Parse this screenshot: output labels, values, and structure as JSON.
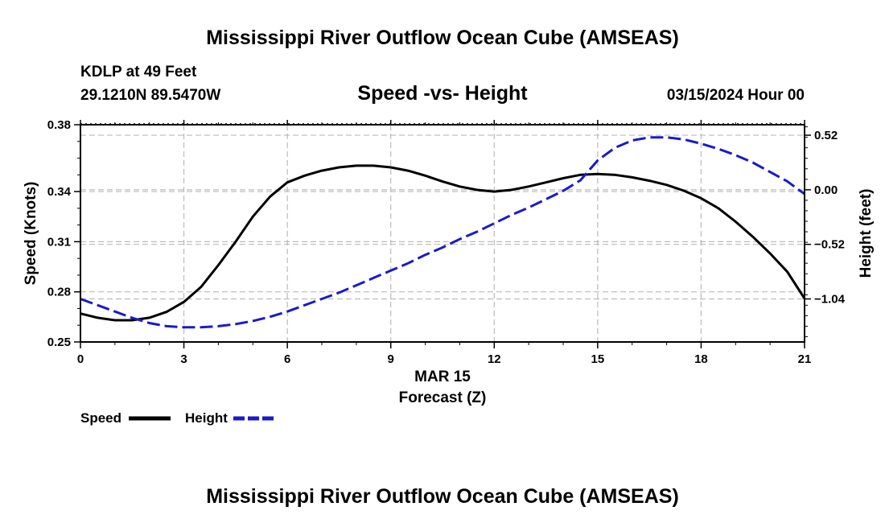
{
  "header": {
    "title": "Mississippi River Outflow Ocean Cube (AMSEAS)",
    "station": "KDLP at 49 Feet",
    "coords": "29.1210N  89.5470W",
    "date_hour": "03/15/2024 Hour 00",
    "footer_title": "Mississippi River Outflow Ocean Cube (AMSEAS)"
  },
  "colors": {
    "speed": "#000000",
    "height": "#1a1acc",
    "grid": "#bbbbbb"
  },
  "chart_data": {
    "type": "line",
    "title": "Speed -vs- Height",
    "xlabel": "Forecast (Z)",
    "xsublabel": "MAR 15",
    "ylabel": "Speed (Knots)",
    "y2label": "Height (feet)",
    "xlim": [
      0,
      21
    ],
    "ylim": [
      0.25,
      0.38
    ],
    "y2lim": [
      -1.45,
      0.62
    ],
    "grid": true,
    "legend_position": "bottom-left",
    "x_ticks": [
      0,
      3,
      6,
      9,
      12,
      15,
      18,
      21
    ],
    "x_tick_labels": [
      "0",
      "3",
      "6",
      "9",
      "12",
      "15",
      "18",
      "21"
    ],
    "y_ticks": [
      0.25,
      0.28,
      0.31,
      0.34,
      0.38
    ],
    "y_tick_labels": [
      "0.25",
      "0.28",
      "0.31",
      "0.34",
      "0.38"
    ],
    "y2_ticks": [
      -1.04,
      -0.52,
      0.0,
      0.52
    ],
    "y2_tick_labels": [
      "−1.04",
      "−0.52",
      "0.00",
      "0.52"
    ],
    "series": [
      {
        "name": "Speed",
        "axis": "left",
        "style": "solid",
        "x": [
          0,
          0.5,
          1,
          1.5,
          2,
          2.5,
          3,
          3.5,
          4,
          4.5,
          5,
          5.5,
          6,
          6.5,
          7,
          7.5,
          8,
          8.5,
          9,
          9.5,
          10,
          10.5,
          11,
          11.5,
          12,
          12.5,
          13,
          13.5,
          14,
          14.5,
          15,
          15.5,
          16,
          16.5,
          17,
          17.5,
          18,
          18.5,
          19,
          19.5,
          20,
          20.5,
          21
        ],
        "values": [
          0.267,
          0.2645,
          0.263,
          0.263,
          0.2645,
          0.268,
          0.274,
          0.283,
          0.296,
          0.31,
          0.325,
          0.337,
          0.3455,
          0.3495,
          0.3525,
          0.3545,
          0.3555,
          0.3555,
          0.3545,
          0.3525,
          0.3495,
          0.346,
          0.343,
          0.341,
          0.34,
          0.341,
          0.343,
          0.3455,
          0.348,
          0.35,
          0.3505,
          0.35,
          0.3485,
          0.3465,
          0.344,
          0.3405,
          0.336,
          0.33,
          0.322,
          0.313,
          0.303,
          0.292,
          0.276
        ]
      },
      {
        "name": "Height",
        "axis": "right",
        "style": "dashed",
        "x": [
          0,
          0.5,
          1,
          1.5,
          2,
          2.5,
          3,
          3.5,
          4,
          4.5,
          5,
          5.5,
          6,
          6.5,
          7,
          7.5,
          8,
          8.5,
          9,
          9.5,
          10,
          10.5,
          11,
          11.5,
          12,
          12.5,
          13,
          13.5,
          14,
          14.5,
          15,
          15.5,
          16,
          16.5,
          17,
          17.5,
          18,
          18.5,
          19,
          19.5,
          20,
          20.5,
          21
        ],
        "values": [
          -1.04,
          -1.1,
          -1.16,
          -1.22,
          -1.27,
          -1.3,
          -1.31,
          -1.31,
          -1.3,
          -1.28,
          -1.25,
          -1.21,
          -1.16,
          -1.1,
          -1.04,
          -0.98,
          -0.91,
          -0.84,
          -0.77,
          -0.7,
          -0.62,
          -0.55,
          -0.47,
          -0.4,
          -0.32,
          -0.24,
          -0.17,
          -0.09,
          -0.01,
          0.09,
          0.28,
          0.4,
          0.47,
          0.5,
          0.5,
          0.48,
          0.44,
          0.39,
          0.33,
          0.26,
          0.17,
          0.08,
          -0.04
        ]
      }
    ]
  }
}
